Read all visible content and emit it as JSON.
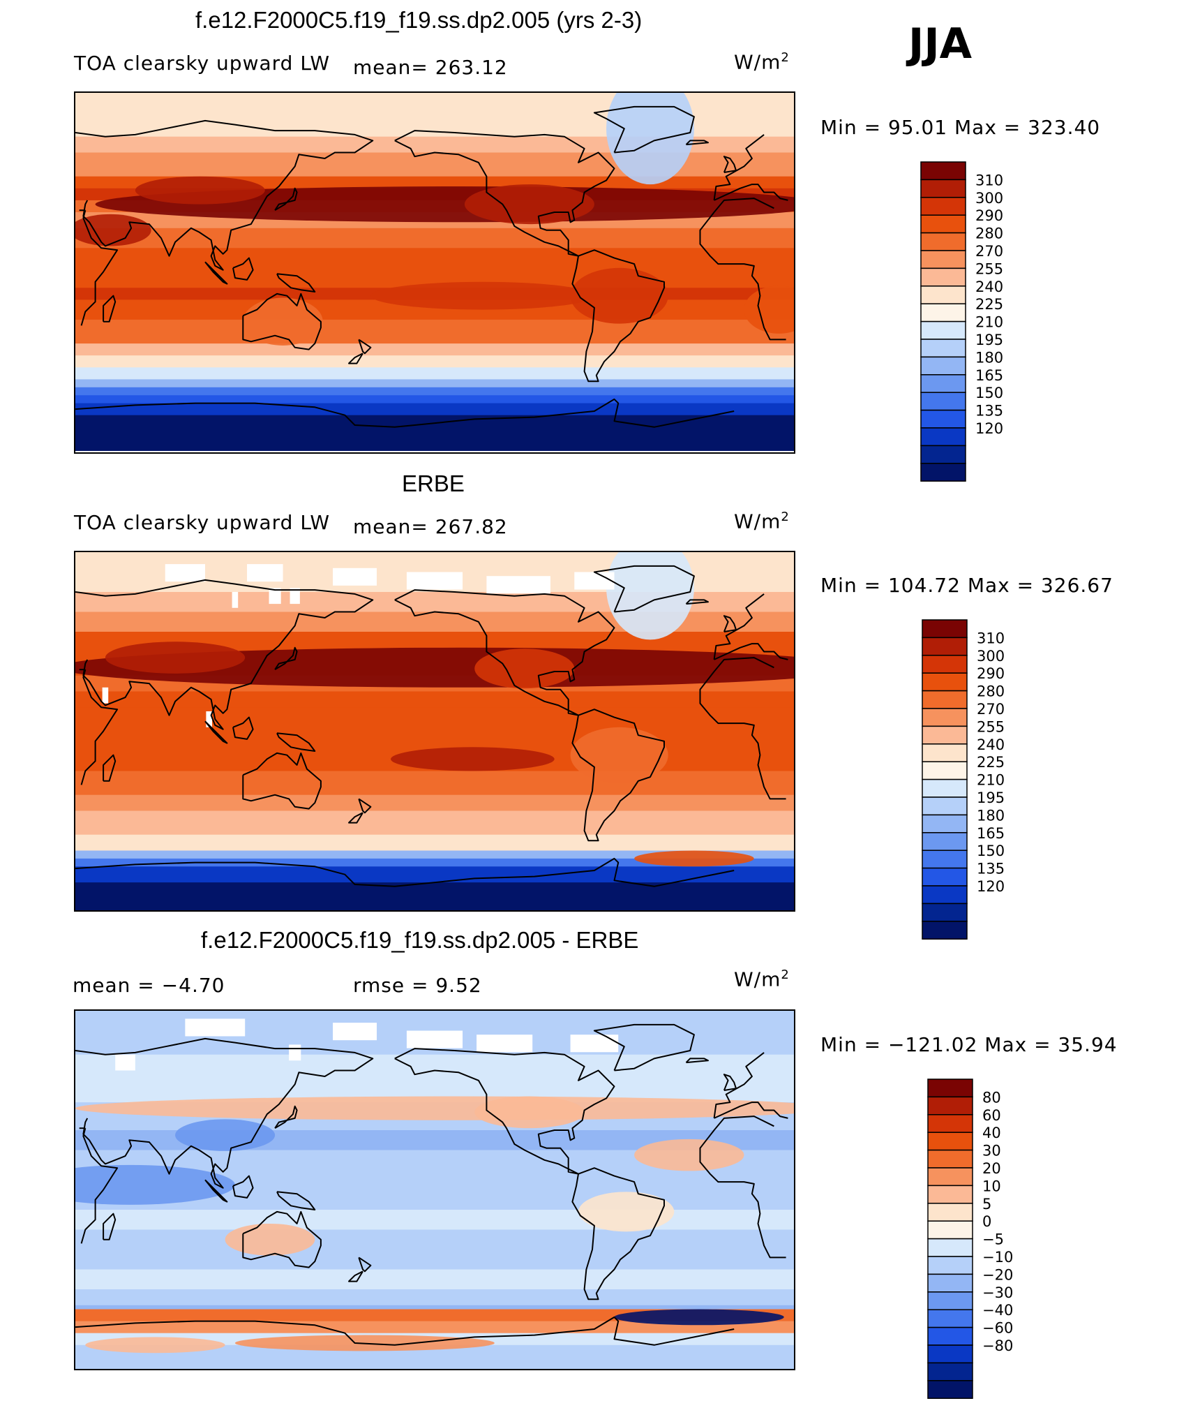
{
  "season": "JJA",
  "panels": [
    {
      "title": "f.e12.F2000C5.f19_f19.ss.dp2.005 (yrs 2-3)",
      "left_label": "TOA clearsky upward LW",
      "center_label": "mean= 263.12",
      "units": "W/m",
      "units_sup": "2",
      "minmax": "Min =   95.01  Max  =  323.40",
      "colorbar": {
        "labels": [
          "310",
          "300",
          "290",
          "280",
          "270",
          "255",
          "240",
          "225",
          "210",
          "195",
          "180",
          "165",
          "150",
          "135",
          "120"
        ],
        "colors": [
          "#7a0403",
          "#b11e06",
          "#d43507",
          "#e8510d",
          "#f06c2c",
          "#f6925e",
          "#fbb996",
          "#fde4cc",
          "#fdf4e8",
          "#d6e8fb",
          "#b5d0f9",
          "#93b6f4",
          "#6c98f0",
          "#4477ed",
          "#2357e6",
          "#0a38c4",
          "#032590",
          "#021468"
        ]
      },
      "chart_data": {
        "type": "heatmap",
        "title": "f.e12.F2000C5.f19_f19.ss.dp2.005 (yrs 2-3)",
        "field": "TOA clearsky upward LW",
        "units": "W/m2",
        "mean": 263.12,
        "min": 95.01,
        "max": 323.4,
        "levels": [
          120,
          135,
          150,
          165,
          180,
          195,
          210,
          225,
          240,
          255,
          270,
          280,
          290,
          300,
          310
        ]
      }
    },
    {
      "title": "ERBE",
      "left_label": "TOA clearsky upward LW",
      "center_label": "mean= 267.82",
      "units": "W/m",
      "units_sup": "2",
      "minmax": "Min  =  104.72  Max  =  326.67",
      "colorbar": {
        "labels": [
          "310",
          "300",
          "290",
          "280",
          "270",
          "255",
          "240",
          "225",
          "210",
          "195",
          "180",
          "165",
          "150",
          "135",
          "120"
        ],
        "colors": [
          "#7a0403",
          "#b11e06",
          "#d43507",
          "#e8510d",
          "#f06c2c",
          "#f6925e",
          "#fbb996",
          "#fde4cc",
          "#fdf4e8",
          "#d6e8fb",
          "#b5d0f9",
          "#93b6f4",
          "#6c98f0",
          "#4477ed",
          "#2357e6",
          "#0a38c4",
          "#032590",
          "#021468"
        ]
      },
      "chart_data": {
        "type": "heatmap",
        "title": "ERBE",
        "field": "TOA clearsky upward LW",
        "units": "W/m2",
        "mean": 267.82,
        "min": 104.72,
        "max": 326.67,
        "levels": [
          120,
          135,
          150,
          165,
          180,
          195,
          210,
          225,
          240,
          255,
          270,
          280,
          290,
          300,
          310
        ]
      }
    },
    {
      "title": "f.e12.F2000C5.f19_f19.ss.dp2.005 - ERBE",
      "left_label": "mean  =    −4.70",
      "center_label": "rmse  =     9.52",
      "units": "W/m",
      "units_sup": "2",
      "minmax": "Min  =  −121.02  Max  =    35.94",
      "colorbar": {
        "labels": [
          "80",
          "60",
          "40",
          "30",
          "20",
          "10",
          "5",
          "0",
          "−5",
          "−10",
          "−20",
          "−30",
          "−40",
          "−60",
          "−80"
        ],
        "colors": [
          "#7a0403",
          "#b11e06",
          "#d43507",
          "#e8510d",
          "#f06c2c",
          "#f6925e",
          "#fbb996",
          "#fde4cc",
          "#fdf4e8",
          "#d6e8fb",
          "#b5d0f9",
          "#93b6f4",
          "#6c98f0",
          "#4477ed",
          "#2357e6",
          "#0a38c4",
          "#032590",
          "#021468"
        ]
      },
      "chart_data": {
        "type": "heatmap",
        "title": "f.e12.F2000C5.f19_f19.ss.dp2.005 - ERBE",
        "units": "W/m2",
        "mean": -4.7,
        "rmse": 9.52,
        "min": -121.02,
        "max": 35.94,
        "levels": [
          -80,
          -60,
          -40,
          -30,
          -20,
          -10,
          -5,
          0,
          5,
          10,
          20,
          30,
          40,
          60,
          80
        ]
      }
    }
  ]
}
